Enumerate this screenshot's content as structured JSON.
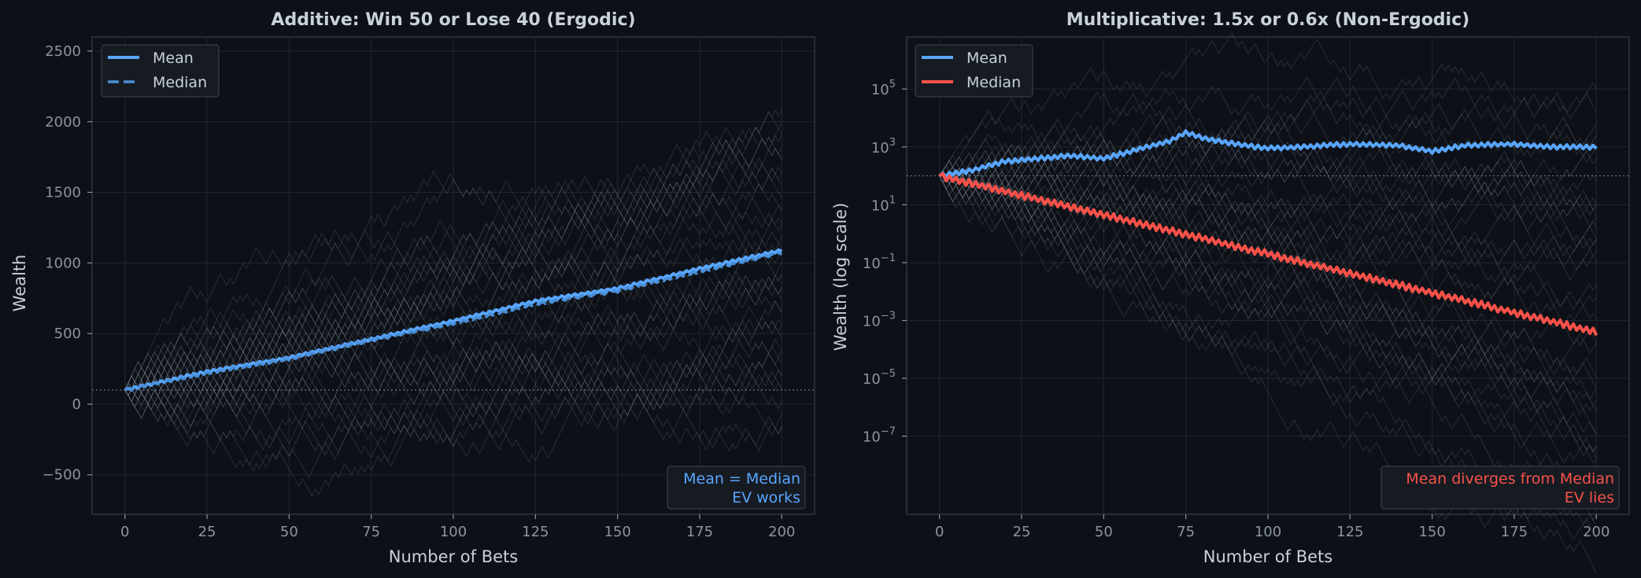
{
  "figure": {
    "background": "#0d1117",
    "plot_background": "#0d1117",
    "text_color": "#c9d1d9",
    "tick_color": "#8b949e",
    "trajectory_color": "#6e7681"
  },
  "chart_data": [
    {
      "type": "line",
      "title": "Additive: Win 50 or Lose 40 (Ergodic)",
      "xlabel": "Number of Bets",
      "ylabel": "Wealth",
      "xlim": [
        -10,
        210
      ],
      "ylim": [
        -780,
        2600
      ],
      "y_scale": "linear",
      "x_ticks": [
        0,
        25,
        50,
        75,
        100,
        125,
        150,
        175,
        200
      ],
      "x_tick_labels": [
        "0",
        "25",
        "50",
        "75",
        "100",
        "125",
        "150",
        "175",
        "200"
      ],
      "y_ticks": [
        -500,
        0,
        500,
        1000,
        1500,
        2000,
        2500
      ],
      "y_tick_labels": [
        "−500",
        "0",
        "500",
        "1000",
        "1500",
        "2000",
        "2500"
      ],
      "grid": true,
      "legend_position": "top-left",
      "reference_line": 100,
      "trajectories": {
        "count": 40,
        "steps": 200,
        "start": 100,
        "win": 50,
        "lose": 40,
        "mode": "additive",
        "final_range": [
          -200,
          2100
        ]
      },
      "series": [
        {
          "name": "Mean",
          "color": "#58a6ff",
          "style": "solid",
          "x": [
            0,
            25,
            50,
            75,
            100,
            125,
            150,
            175,
            200
          ],
          "y": [
            100,
            230,
            330,
            460,
            590,
            730,
            820,
            960,
            1090
          ]
        },
        {
          "name": "Median",
          "color": "#4a8fd8",
          "style": "dashed",
          "x": [
            0,
            25,
            50,
            75,
            100,
            125,
            150,
            175,
            200
          ],
          "y": [
            100,
            220,
            320,
            450,
            570,
            710,
            800,
            940,
            1070
          ]
        }
      ],
      "annotation": {
        "lines": [
          "Mean = Median",
          "EV works"
        ],
        "color": "#58a6ff",
        "position": "bottom-right"
      }
    },
    {
      "type": "line",
      "title": "Multiplicative: 1.5x or 0.6x (Non-Ergodic)",
      "xlabel": "Number of Bets",
      "ylabel": "Wealth (log scale)",
      "xlim": [
        -10,
        210
      ],
      "ylim_log10": [
        -9.7,
        6.8
      ],
      "y_scale": "log",
      "x_ticks": [
        0,
        25,
        50,
        75,
        100,
        125,
        150,
        175,
        200
      ],
      "x_tick_labels": [
        "0",
        "25",
        "50",
        "75",
        "100",
        "125",
        "150",
        "175",
        "200"
      ],
      "y_ticks_log10": [
        5,
        3,
        1,
        -1,
        -3,
        -5,
        -7
      ],
      "y_tick_base": "10",
      "y_tick_exponents": [
        "5",
        "3",
        "1",
        "−1",
        "−3",
        "−5",
        "−7"
      ],
      "grid": true,
      "legend_position": "top-left",
      "reference_line": 100,
      "trajectories": {
        "count": 40,
        "steps": 200,
        "start": 100,
        "up": 1.5,
        "down": 0.6,
        "mode": "multiplicative"
      },
      "series": [
        {
          "name": "Mean",
          "color": "#58a6ff",
          "style": "solid",
          "x": [
            0,
            10,
            20,
            30,
            40,
            50,
            60,
            70,
            75,
            80,
            90,
            100,
            110,
            125,
            140,
            150,
            160,
            175,
            185,
            200
          ],
          "y_log10": [
            2,
            2.2,
            2.5,
            2.6,
            2.7,
            2.6,
            2.9,
            3.2,
            3.5,
            3.3,
            3.1,
            2.95,
            3,
            3.1,
            3.05,
            2.85,
            3.05,
            3.1,
            3,
            3.0
          ]
        },
        {
          "name": "Median",
          "color": "#f85149",
          "style": "solid",
          "x": [
            0,
            200
          ],
          "y_log10": [
            2,
            -3.4
          ]
        }
      ],
      "annotation": {
        "lines": [
          "Mean diverges from Median",
          "EV lies"
        ],
        "color": "#f85149",
        "position": "bottom-right"
      }
    }
  ]
}
